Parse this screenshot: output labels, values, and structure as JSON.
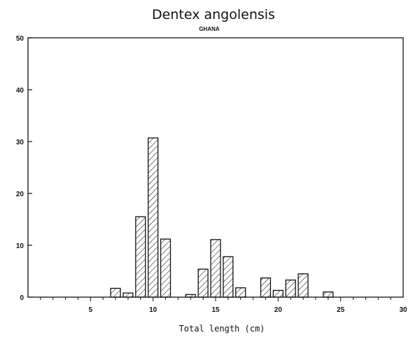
{
  "chart_data": {
    "type": "bar",
    "title": "Dentex angolensis",
    "subtitle": "GHANA",
    "xlabel": "Total length (cm)",
    "ylabel": "",
    "xlim": [
      0,
      30
    ],
    "ylim": [
      0,
      50
    ],
    "x_ticks": [
      5,
      10,
      15,
      20,
      25,
      30
    ],
    "y_ticks": [
      0,
      10,
      20,
      30,
      40,
      50
    ],
    "bar_fill": "hatched",
    "x": [
      7,
      8,
      9,
      10,
      11,
      13,
      14,
      15,
      16,
      17,
      19,
      20,
      21,
      22,
      24
    ],
    "values": [
      1.7,
      0.8,
      15.5,
      30.7,
      11.2,
      0.5,
      5.4,
      11.1,
      7.8,
      1.8,
      3.7,
      1.3,
      3.3,
      4.5,
      1.0
    ],
    "grid": false,
    "legend": "none"
  }
}
